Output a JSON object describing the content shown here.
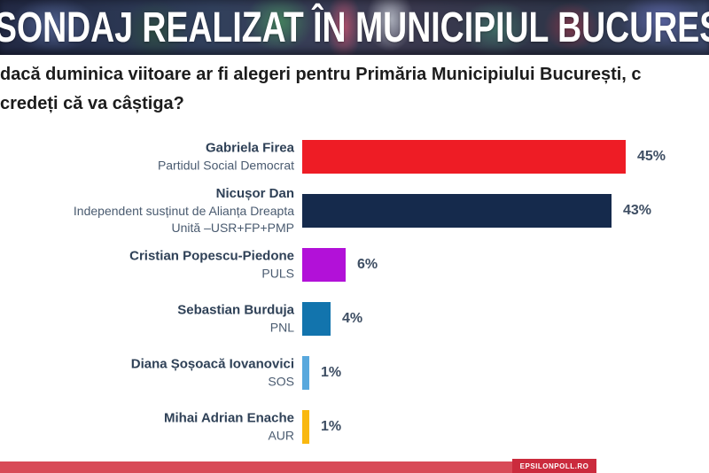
{
  "header": {
    "title": "SONDAJ REALIZAT ÎN MUNICIPIUL BUCUREȘTI"
  },
  "question": {
    "line1": "dacă duminica viitoare ar fi alegeri pentru Primăria Municipiului București, c",
    "line2": "credeți că va câștiga?"
  },
  "chart_data": {
    "type": "bar",
    "orientation": "horizontal",
    "value_unit": "%",
    "xlim": [
      0,
      50
    ],
    "grid": false,
    "value_labels_position": "right-of-bar",
    "categories": [
      "Gabriela Firea",
      "Nicușor Dan",
      "Cristian Popescu-Piedone",
      "Sebastian Burduja",
      "Diana Șoșoacă Iovanovici",
      "Mihai Adrian Enache"
    ],
    "values": [
      45,
      43,
      6,
      4,
      1,
      1
    ],
    "bars": [
      {
        "candidate": "Gabriela Firea",
        "party_lines": [
          "Partidul Social Democrat"
        ],
        "value": 45,
        "value_label": "45%",
        "color": "#ee1c25"
      },
      {
        "candidate": "Nicușor Dan",
        "party_lines": [
          "Independent susținut de Alianța Dreapta",
          "Unită –USR+FP+PMP"
        ],
        "value": 43,
        "value_label": "43%",
        "color": "#152a4c"
      },
      {
        "candidate": "Cristian Popescu-Piedone",
        "party_lines": [
          "PULS"
        ],
        "value": 6,
        "value_label": "6%",
        "color": "#b211d8"
      },
      {
        "candidate": "Sebastian Burduja",
        "party_lines": [
          "PNL"
        ],
        "value": 4,
        "value_label": "4%",
        "color": "#1274ad"
      },
      {
        "candidate": "Diana Șoșoacă Iovanovici",
        "party_lines": [
          "SOS"
        ],
        "value": 1,
        "value_label": "1%",
        "color": "#58a8dd"
      },
      {
        "candidate": "Mihai Adrian Enache",
        "party_lines": [
          "AUR"
        ],
        "value": 1,
        "value_label": "1%",
        "color": "#f9b80f"
      }
    ]
  },
  "footer": {
    "brand": "EPSILONPOLL.RO",
    "bar_color": "#d84a57",
    "badge_color": "#cb2b3d"
  }
}
